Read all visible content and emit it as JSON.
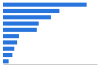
{
  "chart_data": {
    "type": "bar",
    "orientation": "horizontal",
    "categories": [
      null,
      null,
      null,
      null,
      null,
      null,
      null,
      null,
      null,
      null
    ],
    "values": [
      89,
      60,
      51,
      38,
      36,
      17,
      15,
      12,
      10,
      6
    ],
    "color": "#2876dd",
    "xlim": [
      0,
      100
    ],
    "grid": false,
    "tick_labels": false
  }
}
